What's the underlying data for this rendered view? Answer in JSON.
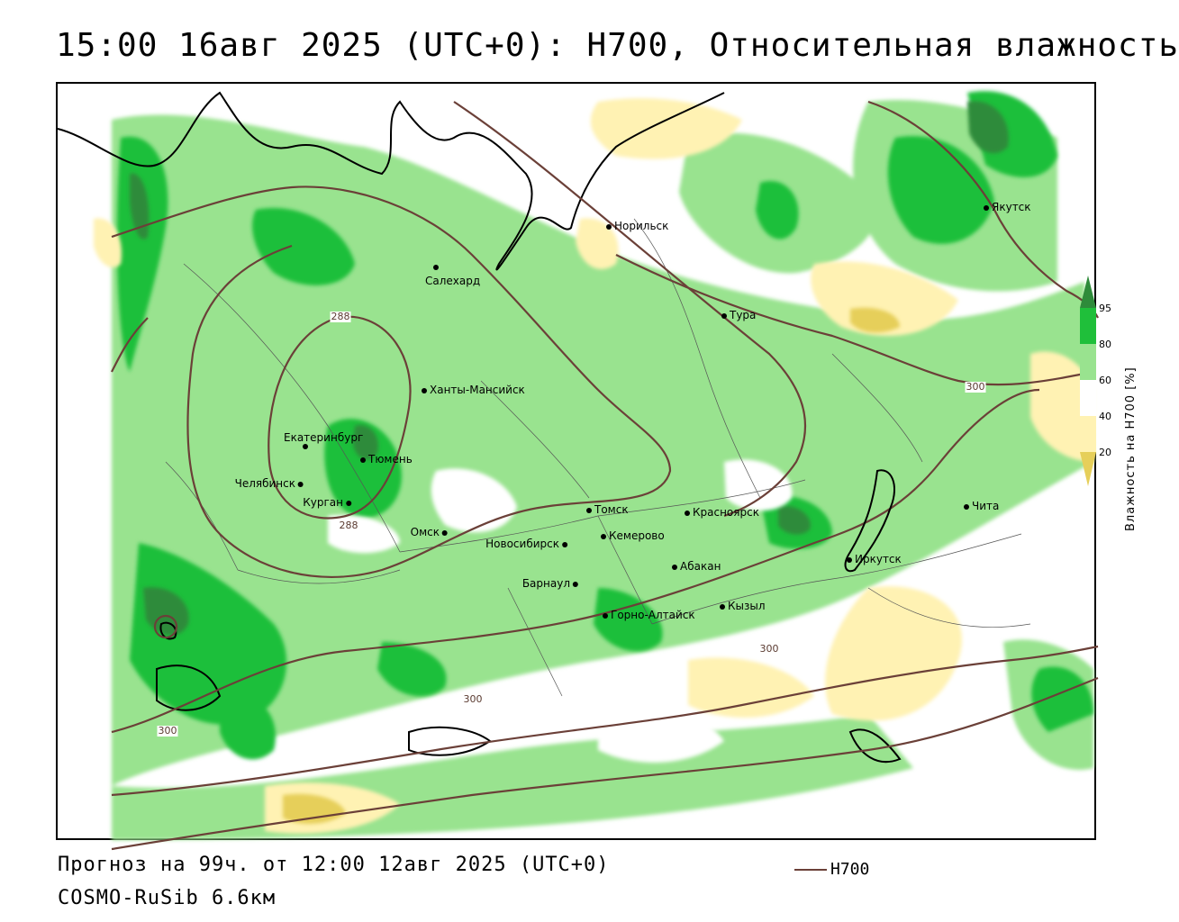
{
  "header": {
    "title": "15:00 16авг 2025 (UTC+0): H700, Относительная влажность"
  },
  "map": {
    "cities": [
      {
        "name": "Норильск",
        "side": "right"
      },
      {
        "name": "Салехард",
        "side": "below"
      },
      {
        "name": "Тура",
        "side": "right"
      },
      {
        "name": "Якутск",
        "side": "right"
      },
      {
        "name": "Ханты-Мансийск",
        "side": "right"
      },
      {
        "name": "Екатеринбург",
        "side": "above"
      },
      {
        "name": "Тюмень",
        "side": "right"
      },
      {
        "name": "Челябинск",
        "side": "left"
      },
      {
        "name": "Курган",
        "side": "left"
      },
      {
        "name": "Омск",
        "side": "left"
      },
      {
        "name": "Новосибирск",
        "side": "left"
      },
      {
        "name": "Томск",
        "side": "right"
      },
      {
        "name": "Кемерово",
        "side": "right"
      },
      {
        "name": "Красноярск",
        "side": "right"
      },
      {
        "name": "Абакан",
        "side": "right"
      },
      {
        "name": "Барнаул",
        "side": "left"
      },
      {
        "name": "Горно-Алтайск",
        "side": "right"
      },
      {
        "name": "Кызыл",
        "side": "right"
      },
      {
        "name": "Иркутск",
        "side": "right"
      },
      {
        "name": "Чита",
        "side": "right"
      }
    ],
    "contour_labels": [
      "288",
      "288",
      "300",
      "300",
      "300",
      "300"
    ]
  },
  "colorbar": {
    "title": "Влажность на H700 [%]",
    "ticks": [
      "95",
      "80",
      "60",
      "40",
      "20"
    ],
    "colors": {
      "above_95": "#2e8b3a",
      "80_95": "#1fbf3a",
      "60_80": "#99e38f",
      "40_60": "#ffffff",
      "20_40": "#fff2b3",
      "below_20": "#e6cf5a"
    }
  },
  "footer": {
    "forecast": "Прогноз на 99ч. от 12:00 12авг 2025 (UTC+0)",
    "model": "COSMO-RuSib 6.6км",
    "legend_label": "H700",
    "legend_color": "#6b4038"
  }
}
